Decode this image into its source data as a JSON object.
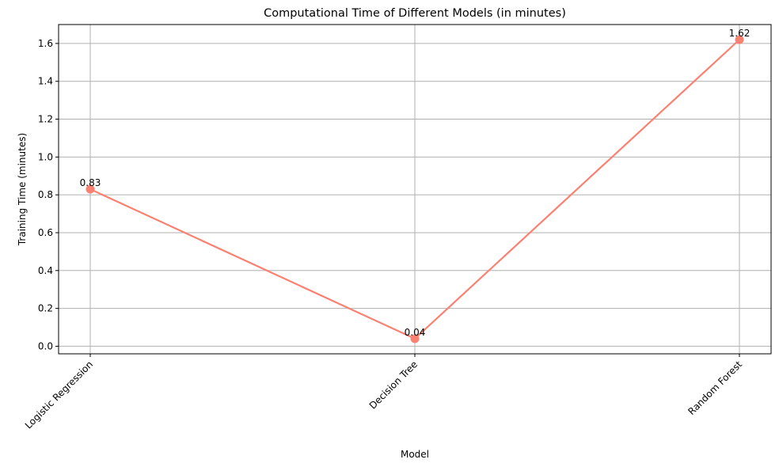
{
  "chart_data": {
    "type": "line",
    "title": "Computational Time of Different Models (in minutes)",
    "xlabel": "Model",
    "ylabel": "Training Time (minutes)",
    "categories": [
      "Logistic Regression",
      "Decision Tree",
      "Random Forest"
    ],
    "values": [
      0.83,
      0.04,
      1.62
    ],
    "data_labels": [
      "0.83",
      "0.04",
      "1.62"
    ],
    "ylim": [
      -0.04,
      1.7
    ],
    "yticks": [
      0.0,
      0.2,
      0.4,
      0.6,
      0.8,
      1.0,
      1.2,
      1.4,
      1.6
    ],
    "ytick_labels": [
      "0.0",
      "0.2",
      "0.4",
      "0.6",
      "0.8",
      "1.0",
      "1.2",
      "1.4",
      "1.6"
    ],
    "grid": true,
    "color": "#fa8072"
  }
}
